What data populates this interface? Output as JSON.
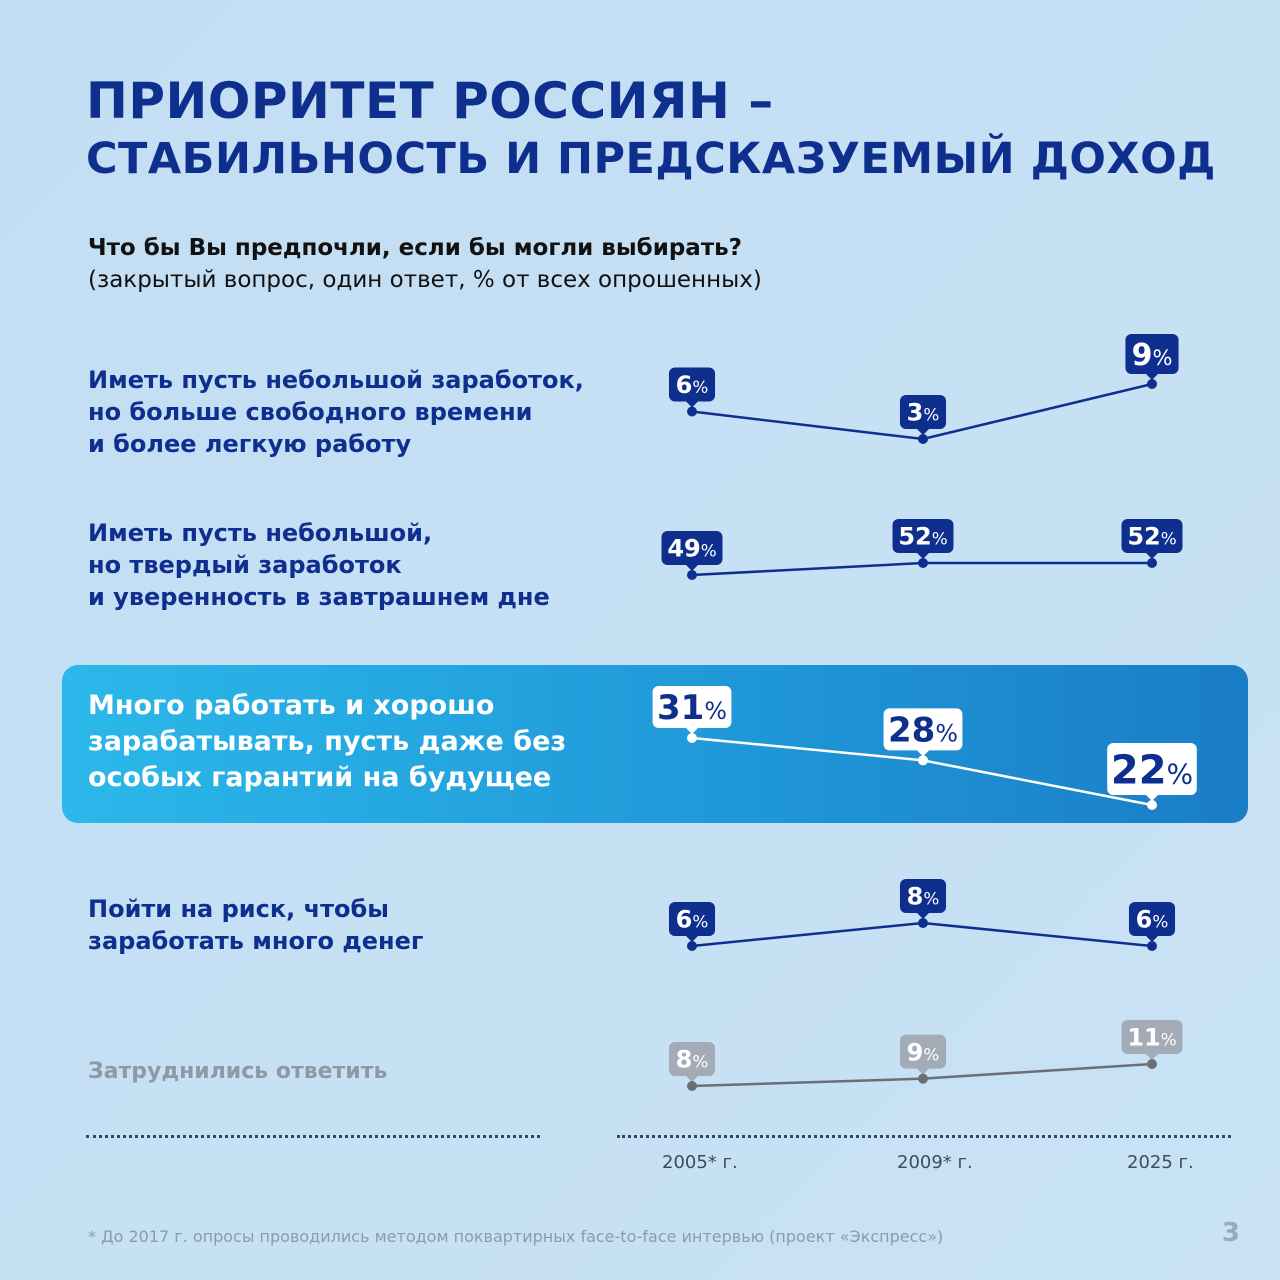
{
  "title": {
    "line1": "ПРИОРИТЕТ РОССИЯН –",
    "line2": "СТАБИЛЬНОСТЬ И ПРЕДСКАЗУЕМЫЙ ДОХОД"
  },
  "question": {
    "text": "Что бы Вы предпочли, если бы могли выбирать?",
    "note": "(закрытый вопрос, один ответ, % от всех опрошенных)"
  },
  "chart_data": {
    "type": "line",
    "categories": [
      "2005* г.",
      "2009* г.",
      "2025 г."
    ],
    "unit": "%",
    "series": [
      {
        "name": "Иметь пусть небольшой заработок,\nно больше свободного времени\nи более легкую работу",
        "values": [
          6,
          3,
          9
        ],
        "color": "#0e2f8e"
      },
      {
        "name": "Иметь пусть небольшой,\nно твердый заработок\nи уверенность в завтрашнем дне",
        "values": [
          49,
          52,
          52
        ],
        "color": "#0e2f8e"
      },
      {
        "name": "Много работать и хорошо\nзарабатывать, пусть даже без\nособых гарантий на будущее",
        "values": [
          31,
          28,
          22
        ],
        "color": "#ffffff",
        "highlighted": true
      },
      {
        "name": "Пойти на риск, чтобы\nзаработать много денег",
        "values": [
          6,
          8,
          6
        ],
        "color": "#0e2f8e"
      },
      {
        "name": "Затруднились ответить",
        "values": [
          8,
          9,
          11
        ],
        "color": "#6b6f75"
      }
    ]
  },
  "footnote": "* До 2017 г. опросы проводились методом поквартирных face-to-face интервью (проект «Экспресс»)",
  "page_number": "3"
}
